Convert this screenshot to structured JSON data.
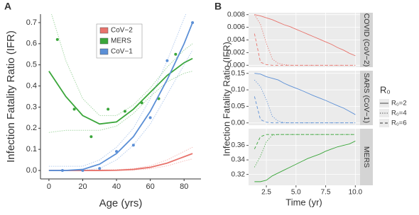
{
  "chart_data": [
    {
      "type": "scatter",
      "panel_label": "A",
      "xlabel": "Age (yrs)",
      "ylabel": "Infection Fatality Ratio (IFR)",
      "xlim": [
        -5,
        90
      ],
      "ylim": [
        -0.04,
        0.74
      ],
      "xticks": [
        0,
        20,
        40,
        60,
        80
      ],
      "yticks": [
        {
          "value": 0,
          "label": "0.0"
        },
        0.1,
        0.2,
        0.3,
        0.4,
        0.5,
        0.6,
        0.7
      ],
      "legend": "top",
      "fit_x": [
        0,
        10,
        20,
        30,
        40,
        50,
        60,
        70,
        80,
        85
      ],
      "series": [
        {
          "name": "CoV−2",
          "color": "#e8736c",
          "fit": [
            0,
            0,
            0,
            0,
            0.001,
            0.005,
            0.015,
            0.035,
            0.065,
            0.08
          ],
          "fit_lower": [
            0,
            0,
            0,
            0,
            0,
            0.002,
            0.008,
            0.022,
            0.045,
            0.055
          ],
          "fit_upper": [
            0.002,
            0.002,
            0.002,
            0.003,
            0.004,
            0.009,
            0.022,
            0.05,
            0.09,
            0.11
          ]
        },
        {
          "name": "MERS",
          "color": "#3aa63a",
          "x": [
            5,
            15,
            25,
            35,
            45,
            55,
            65,
            75
          ],
          "values": [
            0.62,
            0.29,
            0.16,
            0.29,
            0.28,
            0.32,
            0.34,
            0.55
          ],
          "fit": [
            0.47,
            0.35,
            0.26,
            0.22,
            0.23,
            0.29,
            0.37,
            0.45,
            0.51,
            0.53
          ],
          "fit_lower": [
            0.18,
            0.19,
            0.19,
            0.19,
            0.21,
            0.27,
            0.35,
            0.42,
            0.46,
            0.47
          ],
          "fit_upper": [
            0.78,
            0.52,
            0.34,
            0.26,
            0.26,
            0.31,
            0.39,
            0.49,
            0.57,
            0.6
          ]
        },
        {
          "name": "CoV−1",
          "color": "#5b8fd6",
          "x": [
            8,
            20,
            30,
            40,
            50,
            60,
            70,
            85
          ],
          "values": [
            0,
            0,
            0.01,
            0.09,
            0.12,
            0.25,
            0.52,
            0.7
          ],
          "fit": [
            0,
            0,
            0.005,
            0.03,
            0.08,
            0.16,
            0.28,
            0.43,
            0.6,
            0.7
          ],
          "fit_lower": [
            0,
            0,
            0,
            0.01,
            0.05,
            0.12,
            0.22,
            0.36,
            0.5,
            0.57
          ],
          "fit_upper": [
            0.02,
            0.02,
            0.02,
            0.05,
            0.11,
            0.2,
            0.34,
            0.52,
            0.72,
            0.82
          ]
        }
      ]
    },
    {
      "type": "line",
      "strip": "COVID (CoV−2)",
      "color": "#e8736c",
      "x": [
        1.5,
        2,
        2.5,
        3,
        3.5,
        4,
        4.5,
        5,
        5.5,
        6,
        6.5,
        7,
        7.5,
        8,
        8.5,
        9,
        9.5,
        10
      ],
      "xlim": [
        1.0,
        10.4
      ],
      "ylim": [
        -0.0003,
        0.0083
      ],
      "yticks": [
        {
          "value": 0,
          "label": "0.000"
        },
        {
          "value": 0.002,
          "label": "0.002"
        },
        {
          "value": 0.004,
          "label": "0.004"
        },
        {
          "value": 0.006,
          "label": "0.006"
        },
        {
          "value": 0.008,
          "label": "0.008"
        }
      ],
      "series": [
        {
          "linetype": "solid",
          "values": [
            0.008,
            0.0078,
            0.0075,
            0.0072,
            0.0068,
            0.0064,
            0.0061,
            0.0057,
            0.0053,
            0.0049,
            0.0045,
            0.0041,
            0.0037,
            0.0033,
            0.0028,
            0.0024,
            0.0019,
            0.0015
          ]
        },
        {
          "linetype": "dotted",
          "values": [
            0.008,
            0.0065,
            0.0035,
            0.001,
            0.0003,
            0.0001,
            0,
            0,
            0,
            0,
            0,
            0,
            0,
            0,
            0,
            0,
            0,
            0
          ]
        },
        {
          "linetype": "dashed",
          "values": [
            0.005,
            0.0005,
            0.0001,
            0,
            0,
            0,
            0,
            0,
            0,
            0,
            0,
            0,
            0,
            0,
            0,
            0,
            0,
            0
          ]
        }
      ]
    },
    {
      "type": "line",
      "strip": "SARS (CoV−1)",
      "color": "#5b8fd6",
      "x": [
        1.5,
        2,
        2.5,
        3,
        3.5,
        4,
        4.5,
        5,
        5.5,
        6,
        6.5,
        7,
        7.5,
        8,
        8.5,
        9,
        9.5,
        10
      ],
      "xlim": [
        1.0,
        10.4
      ],
      "ylim": [
        -0.007,
        0.158
      ],
      "yticks": [
        {
          "value": 0,
          "label": "0.00"
        },
        0.05,
        {
          "value": 0.1,
          "label": "0.10"
        },
        0.15
      ],
      "series": [
        {
          "linetype": "solid",
          "values": [
            0.15,
            0.148,
            0.14,
            0.135,
            0.13,
            0.12,
            0.112,
            0.105,
            0.098,
            0.09,
            0.082,
            0.075,
            0.068,
            0.06,
            0.052,
            0.045,
            0.035,
            0.025
          ]
        },
        {
          "linetype": "dotted",
          "values": [
            0.13,
            0.11,
            0.07,
            0.02,
            0.005,
            0.001,
            0,
            0,
            0,
            0,
            0,
            0,
            0,
            0,
            0,
            0,
            0,
            0
          ]
        },
        {
          "linetype": "dashed",
          "values": [
            0.08,
            0.01,
            0.002,
            0,
            0,
            0,
            0,
            0,
            0,
            0,
            0,
            0,
            0,
            0,
            0,
            0,
            0,
            0
          ]
        }
      ]
    },
    {
      "type": "line",
      "strip": "MERS",
      "color": "#3aa63a",
      "x": [
        1.5,
        2,
        2.5,
        3,
        3.5,
        4,
        4.5,
        5,
        5.5,
        6,
        6.5,
        7,
        7.5,
        8,
        8.5,
        9,
        9.5,
        10
      ],
      "xlim": [
        1.0,
        10.4
      ],
      "ylim": [
        0.305,
        0.383
      ],
      "yticks": [
        0.32,
        0.34,
        0.36
      ],
      "xticks": [
        2.5,
        {
          "value": 5,
          "label": "5.0"
        },
        7.5,
        {
          "value": 10,
          "label": "10.0"
        }
      ],
      "series": [
        {
          "linetype": "solid",
          "values": [
            0.31,
            0.31,
            0.312,
            0.318,
            0.322,
            0.326,
            0.33,
            0.334,
            0.338,
            0.342,
            0.345,
            0.348,
            0.352,
            0.355,
            0.358,
            0.36,
            0.362,
            0.366
          ]
        },
        {
          "linetype": "dotted",
          "values": [
            0.33,
            0.345,
            0.365,
            0.374,
            0.375,
            0.375,
            0.375,
            0.375,
            0.375,
            0.375,
            0.375,
            0.375,
            0.375,
            0.375,
            0.375,
            0.375,
            0.375,
            0.375
          ]
        },
        {
          "linetype": "dashed",
          "values": [
            0.355,
            0.372,
            0.375,
            0.375,
            0.375,
            0.375,
            0.375,
            0.375,
            0.375,
            0.375,
            0.375,
            0.375,
            0.375,
            0.375,
            0.375,
            0.375,
            0.375,
            0.375
          ]
        }
      ]
    }
  ],
  "panel_b": {
    "panel_label": "B",
    "ylabel": "Infection Fatality Ratio (IFR)",
    "xlabel": "Time (yr)",
    "legend": {
      "title": "R₀",
      "entries": [
        {
          "name": "R₀=2",
          "linetype": "solid"
        },
        {
          "name": "R₀=4",
          "linetype": "dotted"
        },
        {
          "name": "R₀=6",
          "linetype": "dashed"
        }
      ]
    }
  }
}
